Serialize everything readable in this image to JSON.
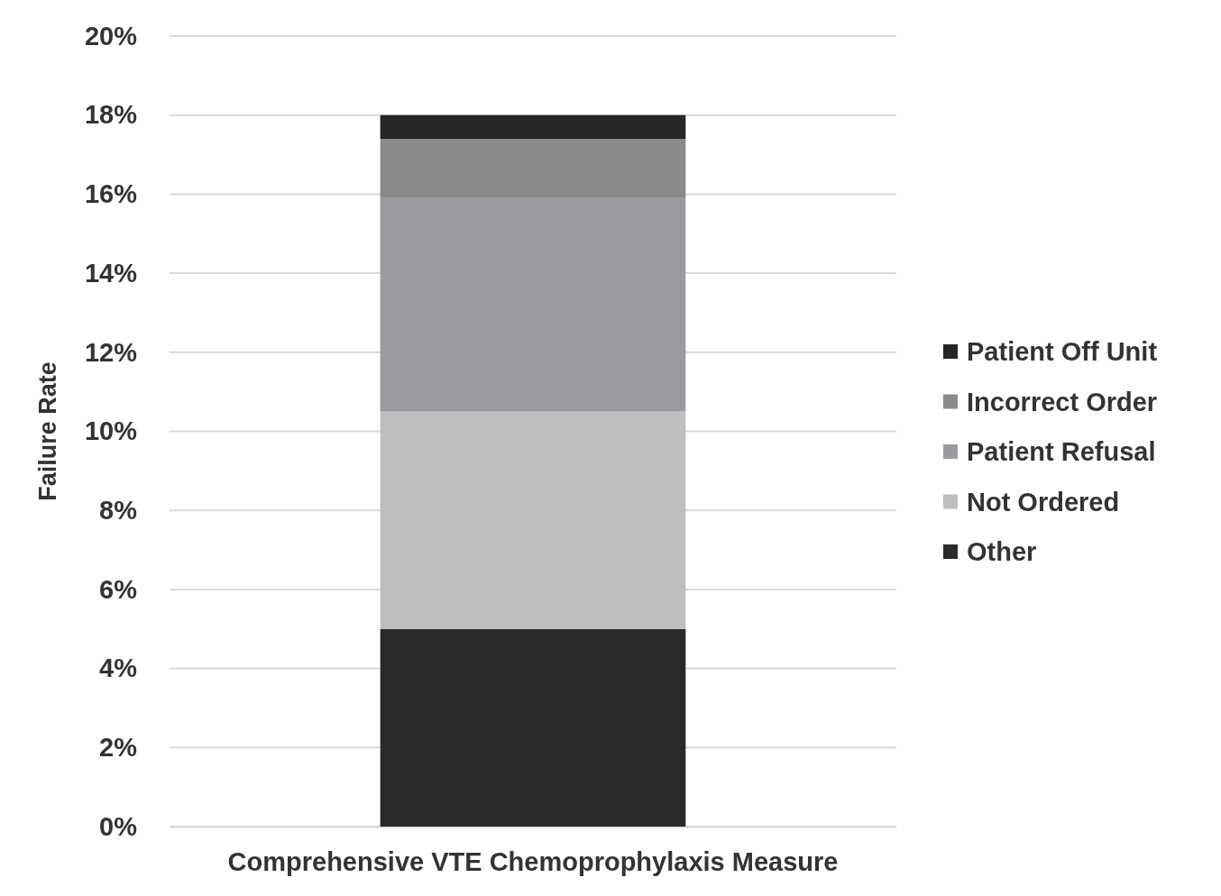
{
  "chart_data": {
    "type": "bar",
    "stacked": true,
    "ylabel": "Failure Rate",
    "categories": [
      "Comprehensive VTE Chemoprophylaxis Measure"
    ],
    "series": [
      {
        "name": "Other",
        "color": "#2a2a2a",
        "values": [
          5.0
        ]
      },
      {
        "name": "Not Ordered",
        "color": "#bdbec0",
        "values": [
          5.5
        ]
      },
      {
        "name": "Patient Refusal",
        "color": "#9a9b9e",
        "values": [
          5.4
        ]
      },
      {
        "name": "Incorrect Order",
        "color": "#8a8a8a",
        "values": [
          1.5
        ]
      },
      {
        "name": "Patient Off Unit",
        "color": "#262626",
        "values": [
          0.6
        ]
      }
    ],
    "ylim": [
      0,
      20
    ],
    "yticks": [
      {
        "value": 0,
        "label": "0%"
      },
      {
        "value": 2,
        "label": "2%"
      },
      {
        "value": 4,
        "label": "4%"
      },
      {
        "value": 6,
        "label": "6%"
      },
      {
        "value": 8,
        "label": "8%"
      },
      {
        "value": 10,
        "label": "10%"
      },
      {
        "value": 12,
        "label": "12%"
      },
      {
        "value": 14,
        "label": "14%"
      },
      {
        "value": 16,
        "label": "16%"
      },
      {
        "value": 18,
        "label": "18%"
      },
      {
        "value": 20,
        "label": "20%"
      }
    ],
    "grid": "y",
    "legend": "right"
  }
}
